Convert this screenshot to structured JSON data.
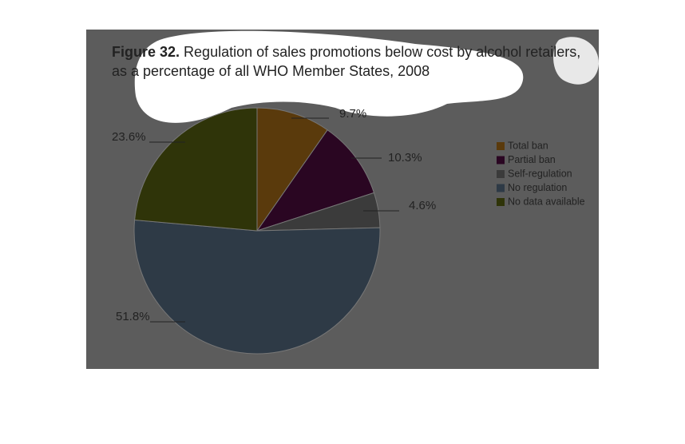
{
  "chart_data": {
    "type": "pie",
    "figure_label": "Figure 32.",
    "title": "Regulation of sales promotions below cost by alcohol retailers, as a percentage of all WHO Member States, 2008",
    "categories": [
      "Total ban",
      "Partial ban",
      "Self-regulation",
      "No regulation",
      "No data available"
    ],
    "values": [
      9.7,
      10.3,
      4.6,
      51.8,
      23.6
    ],
    "value_labels": [
      "9.7%",
      "10.3%",
      "4.6%",
      "51.8%",
      "23.6%"
    ],
    "colors": [
      "#5a3a0c",
      "#2a0622",
      "#3b3b3b",
      "#2e3a46",
      "#2f3409"
    ],
    "legend": "right"
  }
}
